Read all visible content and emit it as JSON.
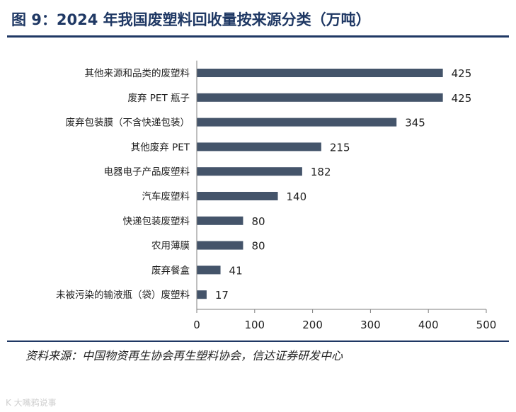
{
  "header": {
    "title": "图 9：2024 年我国废塑料回收量按来源分类（万吨）"
  },
  "chart_data": {
    "type": "bar",
    "orientation": "horizontal",
    "title": "图 9：2024 年我国废塑料回收量按来源分类（万吨）",
    "categories": [
      "其他来源和品类的废塑料",
      "废弃 PET 瓶子",
      "废弃包装膜（不含快递包装）",
      "其他废弃 PET",
      "电器电子产品废塑料",
      "汽车废塑料",
      "快递包装废塑料",
      "农用薄膜",
      "废弃餐盒",
      "未被污染的输液瓶（袋）废塑料"
    ],
    "values": [
      425,
      425,
      345,
      215,
      182,
      140,
      80,
      80,
      41,
      17
    ],
    "xlim": [
      0,
      500
    ],
    "xticks": [
      0,
      100,
      200,
      300,
      400,
      500
    ],
    "xlabel": "",
    "ylabel": "",
    "unit": "万吨",
    "bar_color": "#44546a",
    "grid": false
  },
  "footer": {
    "source": "资料来源：中国物资再生协会再生塑料协会，信达证券研发中心",
    "watermark": "K 大嘴鸦说事"
  }
}
